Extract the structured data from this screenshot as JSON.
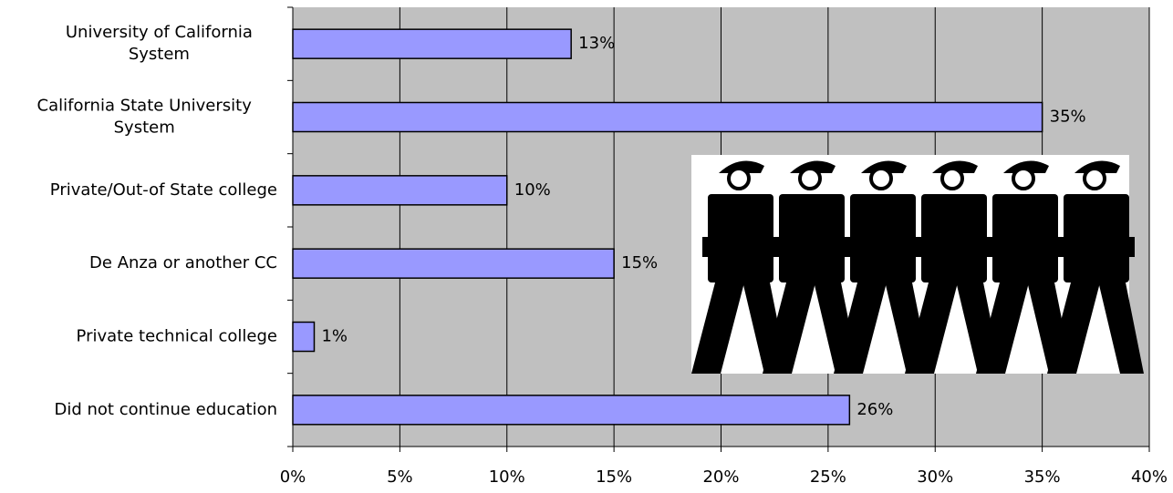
{
  "chart_data": {
    "type": "bar",
    "orientation": "horizontal",
    "categories": [
      "University of California\nSystem",
      "California State University\nSystem",
      "Private/Out-of State college",
      "De Anza or another CC",
      "Private technical college",
      "Did not continue education"
    ],
    "values": [
      13,
      35,
      10,
      15,
      1,
      26
    ],
    "value_labels": [
      "13%",
      "35%",
      "10%",
      "15%",
      "1%",
      "26%"
    ],
    "color": "#9999ff",
    "xlim": [
      0,
      40
    ],
    "xticks": [
      {
        "value": 0,
        "label": "0%"
      },
      {
        "value": 5,
        "label": "5%"
      },
      {
        "value": 10,
        "label": "10%"
      },
      {
        "value": 15,
        "label": "15%"
      },
      {
        "value": 20,
        "label": "20%"
      },
      {
        "value": 25,
        "label": "25%"
      },
      {
        "value": 30,
        "label": "30%"
      },
      {
        "value": 35,
        "label": "35%"
      },
      {
        "value": 40,
        "label": "40%"
      }
    ],
    "grid": true
  }
}
